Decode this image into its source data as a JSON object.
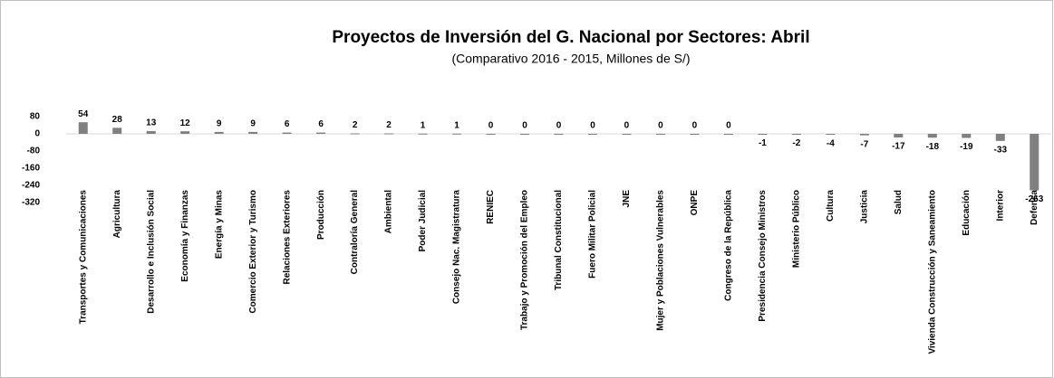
{
  "chart_data": {
    "type": "bar",
    "title": "Proyectos de Inversión del G. Nacional por Sectores: Abril",
    "subtitle": "(Comparativo 2016 - 2015, Millones de S/)",
    "categories": [
      "Transportes y Comunicaciones",
      "Agricultura",
      "Desarrollo e Inclusión Social",
      "Economía y Finanzas",
      "Energía y Minas",
      "Comercio Exterior y Turismo",
      "Relaciones Exteriores",
      "Producción",
      "Contraloría General",
      "Ambiental",
      "Poder Judicial",
      "Consejo Nac. Magistratura",
      "RENIEC",
      "Trabajo y Promoción del Empleo",
      "Tribunal Constitucional",
      "Fuero Militar Policial",
      "JNE",
      "Mujer y Poblaciones Vulnerables",
      "ONPE",
      "Congreso de la República",
      "Presidencia Consejo Ministros",
      "Ministerio Público",
      "Cultura",
      "Justicia",
      "Salud",
      "Vivienda Construcción y Saneamiento",
      "Educación",
      "Interior",
      "Defensa"
    ],
    "values": [
      54,
      28,
      13,
      12,
      9,
      9,
      6,
      6,
      2,
      2,
      1,
      1,
      0,
      0,
      0,
      0,
      0,
      0,
      0,
      0,
      -1,
      -2,
      -4,
      -7,
      -17,
      -18,
      -19,
      -33,
      -263
    ],
    "color": "#808080",
    "ylim": [
      -320,
      80
    ],
    "yticks": [
      80,
      0,
      -80,
      -160,
      -240,
      -320
    ]
  }
}
